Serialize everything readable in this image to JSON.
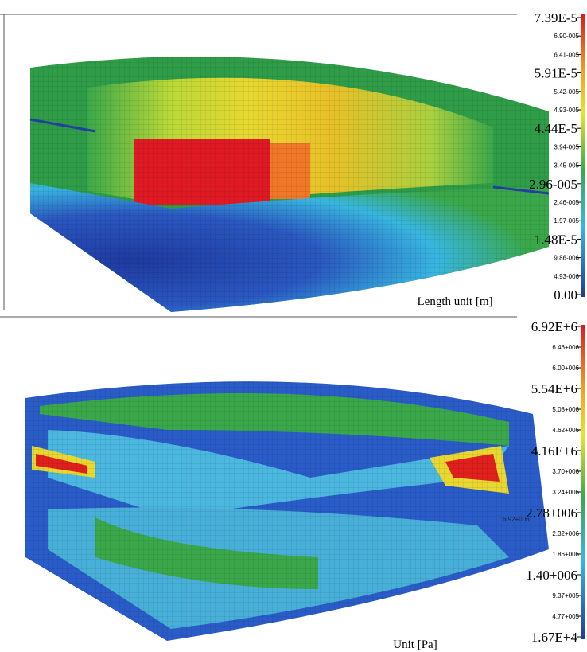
{
  "panels": [
    {
      "legend": [
        "7.39E-5",
        "6.90-005",
        "6.41-005",
        "5.91E-5",
        "5.42-005",
        "4.93-005",
        "4.44E-5",
        "3.94-005",
        "3.45-005",
        "2.96-005",
        "2.46-005",
        "1.97-005",
        "1.48E-5",
        "9.86-006",
        "4.93-006",
        "0.00"
      ],
      "unit": "Length unit [m]"
    },
    {
      "legend": [
        "6.92E+6",
        "6.46+006",
        "6.00+006",
        "5.54E+6",
        "5.08+006",
        "4.62+006",
        "4.16E+6",
        "3.70+006",
        "3.24+006",
        "2.78+006",
        "2.32+006",
        "1.86+006",
        "1.40+006",
        "9.37+005",
        "4.77+005",
        "1.67E+4"
      ],
      "unit": "Unit [Pa]",
      "annotation": "6.92+006"
    }
  ]
}
